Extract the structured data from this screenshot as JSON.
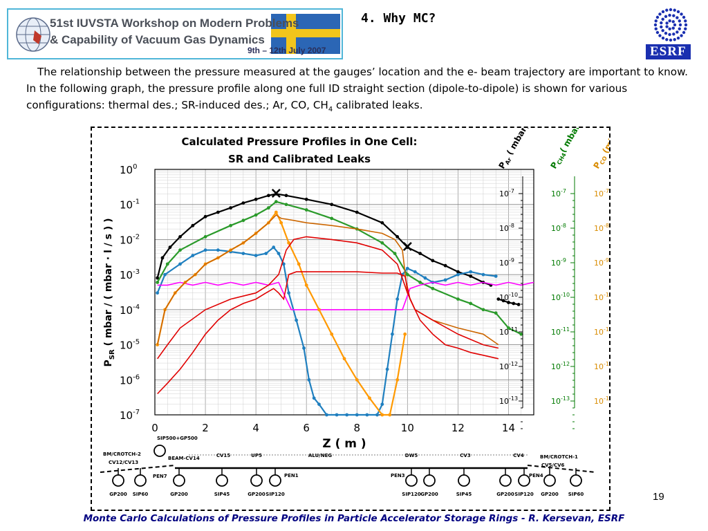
{
  "header": {
    "banner_line1": "51st IUVSTA Workshop on Modern Problems",
    "banner_line2": "& Capability of Vacuum Gas Dynamics",
    "banner_dates": "9th – 12th  July 2007",
    "slide_title": "4. Why MC?",
    "esrf_logo_text": "ESRF"
  },
  "intro": {
    "text_part1": "The relationship between the pressure measured at the gauges’ location and the e- beam trajectory are important to know. In the following graph, the pressure profile along one full ID straight section (dipole-to-dipole) is shown for various configurations: thermal des.; SR-induced des.; Ar, CO, CH",
    "subscript": "4",
    "text_part2": " calibrated leaks."
  },
  "page_number": "19",
  "footer": "Monte Carlo Calculations of Pressure Profiles in Particle Accelerator Storage Rings - R. Kersevan, ESRF",
  "chart_data": {
    "type": "line",
    "title": "Calculated Pressure Profiles in One Cell:",
    "subtitle": "SR and Calibrated Leaks",
    "xlabel": "Z ( m )",
    "ylabel": "PSR ( mbar / ( mbar · l / s ) )",
    "ylabel_main": "P",
    "ylabel_sub": "SR",
    "ylabel_rest": " ( mbar / ( mbar · l / s ) )",
    "xlim": [
      0,
      15
    ],
    "y_scale": "log",
    "ylim": [
      1e-07,
      1
    ],
    "grid": true,
    "x_ticks": [
      "0",
      "2",
      "4",
      "6",
      "8",
      "10",
      "12",
      "14"
    ],
    "y_ticks": [
      {
        "base": "10",
        "exp": "0"
      },
      {
        "base": "10",
        "exp": "-1"
      },
      {
        "base": "10",
        "exp": "-2"
      },
      {
        "base": "10",
        "exp": "-3"
      },
      {
        "base": "10",
        "exp": "-4"
      },
      {
        "base": "10",
        "exp": "-5"
      },
      {
        "base": "10",
        "exp": "-6"
      },
      {
        "base": "10",
        "exp": "-7"
      }
    ],
    "right_axes": [
      {
        "label_main": "P",
        "label_sub": "Ar",
        "label_rest": " ( mbar)",
        "color": "#000000",
        "ticks": [
          {
            "base": "10",
            "exp": "-7"
          },
          {
            "base": "10",
            "exp": "-8"
          },
          {
            "base": "10",
            "exp": "-9"
          },
          {
            "base": "10",
            "exp": "-10"
          },
          {
            "base": "10",
            "exp": "-11"
          },
          {
            "base": "10",
            "exp": "-12"
          },
          {
            "base": "10",
            "exp": "-13"
          }
        ]
      },
      {
        "label_main": "P",
        "label_sub": "CH4",
        "label_rest": "( mbar )",
        "color": "#007a00",
        "ticks": [
          {
            "base": "10",
            "exp": "-7"
          },
          {
            "base": "10",
            "exp": "-8"
          },
          {
            "base": "10",
            "exp": "-9"
          },
          {
            "base": "10",
            "exp": "-10"
          },
          {
            "base": "10",
            "exp": "-11"
          },
          {
            "base": "10",
            "exp": "-12"
          },
          {
            "base": "10",
            "exp": "-13"
          }
        ]
      },
      {
        "label_main": "P",
        "label_sub": "CO",
        "label_rest": " (mbar)",
        "color": "#d98c00",
        "ticks": [
          {
            "base": "10",
            "exp": "-7"
          },
          {
            "base": "10",
            "exp": "-8"
          },
          {
            "base": "10",
            "exp": "-9"
          },
          {
            "base": "10",
            "exp": "-10"
          },
          {
            "base": "10",
            "exp": "-11"
          },
          {
            "base": "10",
            "exp": "-12"
          },
          {
            "base": "10",
            "exp": "-13"
          }
        ]
      }
    ],
    "series": [
      {
        "color": "#000000",
        "style": "dots",
        "x": [
          0.1,
          0.3,
          0.6,
          1,
          1.5,
          2,
          2.5,
          3,
          3.5,
          4,
          4.5,
          4.8,
          5.2,
          6,
          7,
          8,
          9,
          9.6,
          10,
          10.5,
          11,
          11.5,
          12,
          12.5,
          13,
          13.3
        ],
        "y": [
          0.0008,
          0.003,
          0.006,
          0.012,
          0.025,
          0.045,
          0.06,
          0.08,
          0.11,
          0.14,
          0.18,
          0.2,
          0.18,
          0.14,
          0.1,
          0.06,
          0.03,
          0.012,
          0.006,
          0.004,
          0.0025,
          0.0018,
          0.0012,
          0.0009,
          0.0006,
          0.0005
        ]
      },
      {
        "color": "#000000",
        "style": "dots",
        "x": [
          13.6,
          13.8,
          14,
          14.2,
          14.4
        ],
        "y": [
          0.0002,
          0.00018,
          0.00016,
          0.00015,
          0.00014
        ]
      },
      {
        "color": "#2a9a2a",
        "style": "dots",
        "x": [
          0.1,
          0.5,
          1,
          2,
          3,
          3.5,
          4,
          4.5,
          4.8,
          5.2,
          6,
          7,
          8,
          9,
          9.5,
          10,
          10.5,
          11,
          12,
          12.5,
          13,
          13.5,
          14,
          14.5
        ],
        "y": [
          0.0006,
          0.002,
          0.005,
          0.012,
          0.025,
          0.035,
          0.05,
          0.08,
          0.12,
          0.1,
          0.07,
          0.04,
          0.02,
          0.008,
          0.004,
          0.001,
          0.0006,
          0.0004,
          0.0002,
          0.00015,
          0.0001,
          8e-05,
          3e-05,
          2e-05
        ]
      },
      {
        "color": "#1f7fbf",
        "style": "dots",
        "x": [
          0.1,
          0.4,
          1,
          1.5,
          2,
          2.5,
          3,
          3.5,
          4,
          4.4,
          4.7,
          4.9,
          5.1,
          5.3,
          5.6,
          5.9,
          6.1,
          6.3,
          6.5,
          6.8,
          7.2,
          7.6,
          8,
          8.4,
          8.8,
          9,
          9.2,
          9.4,
          9.6,
          9.8,
          10,
          10.3,
          10.7,
          11,
          11.5,
          12,
          12.5,
          13,
          13.5
        ],
        "y": [
          0.0003,
          0.001,
          0.002,
          0.0035,
          0.005,
          0.005,
          0.0045,
          0.004,
          0.0035,
          0.004,
          0.006,
          0.004,
          0.002,
          0.0003,
          5e-05,
          8e-06,
          1e-06,
          3e-07,
          2e-07,
          1e-07,
          1e-07,
          1e-07,
          1e-07,
          1e-07,
          1e-07,
          2e-07,
          2e-06,
          2e-05,
          0.0002,
          0.001,
          0.0015,
          0.0012,
          0.0008,
          0.0006,
          0.0007,
          0.001,
          0.0012,
          0.001,
          0.0009
        ]
      },
      {
        "color": "#ff00ff",
        "style": "line",
        "x": [
          0.1,
          0.5,
          1,
          1.5,
          2,
          2.5,
          3,
          3.5,
          4,
          4.5,
          4.9,
          5.2,
          5.4,
          6,
          7,
          8,
          9,
          9.5,
          9.8,
          10.1,
          10.5,
          11,
          11.5,
          12,
          12.5,
          13,
          13.5,
          14,
          14.5,
          15
        ],
        "y": [
          0.0005,
          0.0005,
          0.0006,
          0.0005,
          0.0006,
          0.0005,
          0.0006,
          0.0005,
          0.0006,
          0.0005,
          0.0006,
          0.0002,
          0.0001,
          0.0001,
          0.0001,
          0.0001,
          0.0001,
          0.0001,
          0.0001,
          0.0004,
          0.0005,
          0.0006,
          0.0005,
          0.0006,
          0.0005,
          0.0006,
          0.0005,
          0.0006,
          0.0005,
          0.0006
        ]
      },
      {
        "color": "#ff9900",
        "style": "dots",
        "x": [
          0.1,
          0.4,
          0.8,
          1.2,
          1.6,
          2,
          2.5,
          3,
          3.5,
          4,
          4.5,
          4.8,
          5,
          5.3,
          5.7,
          6,
          6.5,
          7,
          7.5,
          8,
          8.5,
          9,
          9.3,
          9.6,
          9.9
        ],
        "y": [
          1e-05,
          0.0001,
          0.0003,
          0.0006,
          0.001,
          0.002,
          0.003,
          0.005,
          0.008,
          0.015,
          0.03,
          0.06,
          0.03,
          0.008,
          0.002,
          0.0005,
          0.0001,
          2e-05,
          4e-06,
          1e-06,
          3e-07,
          1e-07,
          1e-07,
          1e-06,
          2e-05
        ]
      },
      {
        "color": "#cc6600",
        "style": "line",
        "x": [
          0.1,
          0.4,
          0.8,
          1.2,
          1.6,
          2,
          2.5,
          3,
          3.5,
          4,
          4.5,
          4.8,
          5,
          5.5,
          6,
          7,
          8,
          9,
          9.5,
          9.8,
          10,
          10.3,
          11,
          12,
          13,
          13.6
        ],
        "y": [
          1e-05,
          0.0001,
          0.0003,
          0.0006,
          0.001,
          0.002,
          0.003,
          0.005,
          0.008,
          0.015,
          0.03,
          0.05,
          0.04,
          0.035,
          0.03,
          0.025,
          0.02,
          0.015,
          0.01,
          0.005,
          0.0003,
          0.0001,
          5e-05,
          3e-05,
          2e-05,
          1e-05
        ]
      },
      {
        "color": "#e00000",
        "style": "line",
        "x": [
          0.1,
          0.5,
          1,
          1.5,
          2,
          2.5,
          3,
          3.5,
          4,
          4.4,
          4.7,
          4.9,
          5.1,
          5.3,
          5.6,
          6,
          7,
          8,
          9,
          9.6,
          9.9,
          10.1,
          10.5,
          11,
          11.5,
          12,
          12.5,
          13,
          13.6
        ],
        "y": [
          4e-07,
          8e-07,
          2e-06,
          6e-06,
          2e-05,
          5e-05,
          0.0001,
          0.00015,
          0.0002,
          0.0003,
          0.0004,
          0.0003,
          0.0002,
          0.001,
          0.0012,
          0.0012,
          0.0012,
          0.0012,
          0.0011,
          0.0011,
          0.0009,
          0.0002,
          5e-05,
          2e-05,
          1e-05,
          8e-06,
          6e-06,
          5e-06,
          4e-06
        ]
      },
      {
        "color": "#e00000",
        "style": "line",
        "x": [
          0.1,
          0.5,
          1,
          2,
          3,
          4,
          4.5,
          4.9,
          5.2,
          5.5,
          6,
          7,
          8,
          9,
          9.6,
          10,
          10.3,
          11,
          12,
          13,
          13.6
        ],
        "y": [
          4e-06,
          1e-05,
          3e-05,
          0.0001,
          0.0002,
          0.0003,
          0.0005,
          0.001,
          0.005,
          0.01,
          0.012,
          0.01,
          0.008,
          0.005,
          0.002,
          0.0003,
          0.0001,
          5e-05,
          2e-05,
          1e-05,
          8e-06
        ]
      }
    ],
    "markers": [
      {
        "x": 4.8,
        "y": 0.2,
        "label": "×"
      },
      {
        "x": 10,
        "y": 0.006,
        "label": "×"
      }
    ],
    "beamline": {
      "top_labels": [
        "SIP500+GP500",
        "BM/CROTCH-2",
        "CV12/CV13",
        "BM/CROTCH-1",
        "CV5/CV6",
        "PEN7",
        "BEAM-CV14",
        "PEN1",
        "PEN3",
        "PEN4"
      ],
      "sections": [
        "CV15",
        "UP5",
        "ALU/NEG",
        "DW5",
        "CV3",
        "CV4"
      ],
      "pumps": [
        "GP200",
        "SIP60",
        "GP200",
        "SIP45",
        "GP200",
        "SIP120",
        "SIP120",
        "GP200",
        "SIP45",
        "GP200",
        "SIP120",
        "GP200",
        "SIP60"
      ]
    }
  }
}
